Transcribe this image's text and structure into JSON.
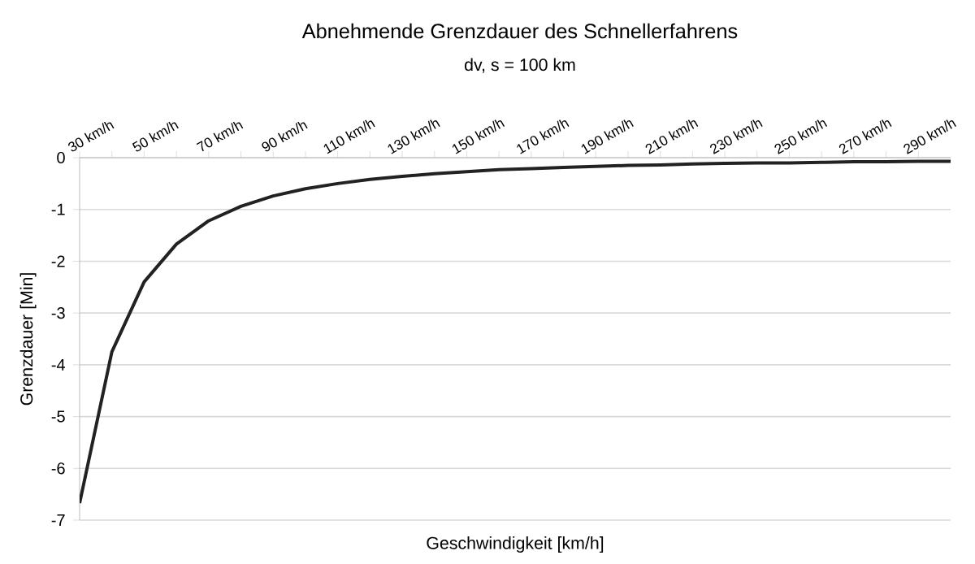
{
  "chart_data": {
    "type": "line",
    "title": "Abnehmende Grenzdauer des Schnellerfahrens",
    "subtitle": "dv, s = 100 km",
    "xlabel": "Geschwindigkeit [km/h]",
    "ylabel": "Grenzdauer [Min]",
    "x": [
      30,
      40,
      50,
      60,
      70,
      80,
      90,
      100,
      110,
      120,
      130,
      140,
      150,
      160,
      170,
      180,
      190,
      200,
      210,
      220,
      230,
      240,
      250,
      260,
      270,
      280,
      290,
      300
    ],
    "series": [
      {
        "color": "#222222",
        "values": [
          -6.67,
          -3.75,
          -2.4,
          -1.67,
          -1.22,
          -0.94,
          -0.74,
          -0.6,
          -0.5,
          -0.42,
          -0.36,
          -0.31,
          -0.27,
          -0.23,
          -0.21,
          -0.19,
          -0.17,
          -0.15,
          -0.14,
          -0.12,
          -0.11,
          -0.1,
          -0.1,
          -0.09,
          -0.08,
          -0.08,
          -0.07,
          -0.07
        ]
      }
    ],
    "xlim": [
      30,
      300
    ],
    "xticks": [
      {
        "value": 30,
        "label": "30 km/h"
      },
      {
        "value": 40,
        "label": null
      },
      {
        "value": 50,
        "label": "50 km/h"
      },
      {
        "value": 60,
        "label": null
      },
      {
        "value": 70,
        "label": "70 km/h"
      },
      {
        "value": 80,
        "label": null
      },
      {
        "value": 90,
        "label": "90 km/h"
      },
      {
        "value": 100,
        "label": null
      },
      {
        "value": 110,
        "label": "110 km/h"
      },
      {
        "value": 120,
        "label": null
      },
      {
        "value": 130,
        "label": "130 km/h"
      },
      {
        "value": 140,
        "label": null
      },
      {
        "value": 150,
        "label": "150 km/h"
      },
      {
        "value": 160,
        "label": null
      },
      {
        "value": 170,
        "label": "170 km/h"
      },
      {
        "value": 180,
        "label": null
      },
      {
        "value": 190,
        "label": "190 km/h"
      },
      {
        "value": 200,
        "label": null
      },
      {
        "value": 210,
        "label": "210 km/h"
      },
      {
        "value": 220,
        "label": null
      },
      {
        "value": 230,
        "label": "230 km/h"
      },
      {
        "value": 240,
        "label": null
      },
      {
        "value": 250,
        "label": "250 km/h"
      },
      {
        "value": 260,
        "label": null
      },
      {
        "value": 270,
        "label": "270 km/h"
      },
      {
        "value": 280,
        "label": null
      },
      {
        "value": 290,
        "label": "290 km/h"
      }
    ],
    "ylim": [
      -7,
      0
    ],
    "yticks": [
      -7,
      -6,
      -5,
      -4,
      -3,
      -2,
      -1,
      0
    ],
    "grid": "y",
    "marker": "none",
    "line_style": "solid"
  }
}
